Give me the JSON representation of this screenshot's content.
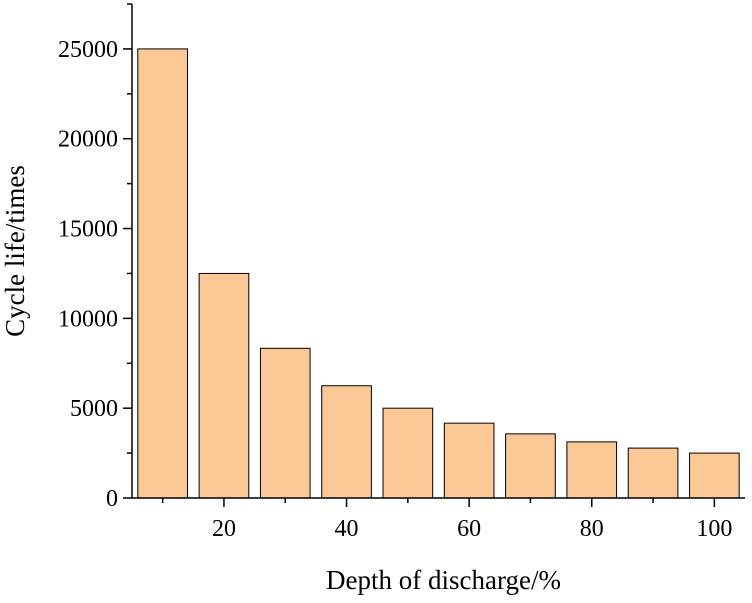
{
  "chart_data": {
    "type": "bar",
    "xlabel": "Depth of discharge/%",
    "ylabel": "Cycle life/times",
    "x": [
      10,
      20,
      30,
      40,
      50,
      60,
      70,
      80,
      90,
      100
    ],
    "values": [
      25000,
      12500,
      8333,
      6250,
      5000,
      4167,
      3571,
      3125,
      2778,
      2500
    ],
    "xlim": [
      5,
      105
    ],
    "ylim": [
      0,
      27500
    ],
    "x_major_ticks": [
      20,
      40,
      60,
      80,
      100
    ],
    "x_minor_ticks": [
      10,
      30,
      50,
      70,
      90
    ],
    "y_major_ticks": [
      0,
      5000,
      10000,
      15000,
      20000,
      25000
    ],
    "y_tick_labels": [
      "0",
      "5000",
      "10000",
      "15000",
      "20000",
      "25000"
    ],
    "x_tick_labels": [
      "20",
      "40",
      "60",
      "80",
      "100"
    ],
    "bar_color": "#fcc996",
    "grid": false,
    "legend": "none"
  }
}
